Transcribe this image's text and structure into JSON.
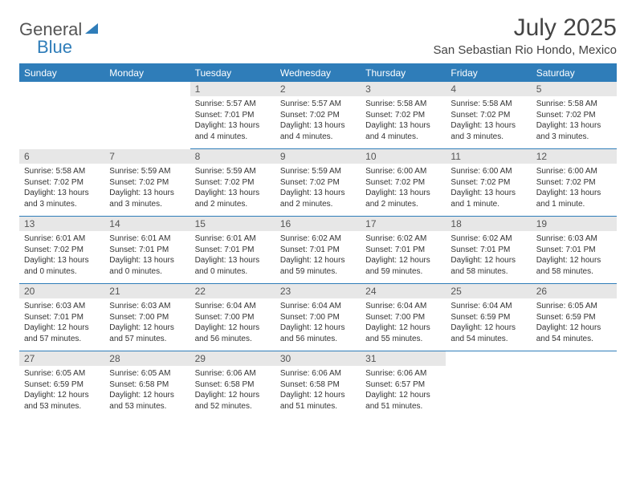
{
  "logo": {
    "word1": "General",
    "word2": "Blue"
  },
  "title": "July 2025",
  "location": "San Sebastian Rio Hondo, Mexico",
  "colors": {
    "header_bg": "#2f7db9",
    "header_fg": "#ffffff",
    "daynum_bg": "#e7e7e7",
    "text": "#333333",
    "rule": "#2f7db9"
  },
  "fonts": {
    "title_pt": 30,
    "location_pt": 15,
    "dow_pt": 12,
    "daynum_pt": 12,
    "body_pt": 10
  },
  "days_of_week": [
    "Sunday",
    "Monday",
    "Tuesday",
    "Wednesday",
    "Thursday",
    "Friday",
    "Saturday"
  ],
  "weeks": [
    [
      null,
      null,
      {
        "n": "1",
        "sunrise": "5:57 AM",
        "sunset": "7:01 PM",
        "dl1": "13 hours",
        "dl2": "and 4 minutes."
      },
      {
        "n": "2",
        "sunrise": "5:57 AM",
        "sunset": "7:02 PM",
        "dl1": "13 hours",
        "dl2": "and 4 minutes."
      },
      {
        "n": "3",
        "sunrise": "5:58 AM",
        "sunset": "7:02 PM",
        "dl1": "13 hours",
        "dl2": "and 4 minutes."
      },
      {
        "n": "4",
        "sunrise": "5:58 AM",
        "sunset": "7:02 PM",
        "dl1": "13 hours",
        "dl2": "and 3 minutes."
      },
      {
        "n": "5",
        "sunrise": "5:58 AM",
        "sunset": "7:02 PM",
        "dl1": "13 hours",
        "dl2": "and 3 minutes."
      }
    ],
    [
      {
        "n": "6",
        "sunrise": "5:58 AM",
        "sunset": "7:02 PM",
        "dl1": "13 hours",
        "dl2": "and 3 minutes."
      },
      {
        "n": "7",
        "sunrise": "5:59 AM",
        "sunset": "7:02 PM",
        "dl1": "13 hours",
        "dl2": "and 3 minutes."
      },
      {
        "n": "8",
        "sunrise": "5:59 AM",
        "sunset": "7:02 PM",
        "dl1": "13 hours",
        "dl2": "and 2 minutes."
      },
      {
        "n": "9",
        "sunrise": "5:59 AM",
        "sunset": "7:02 PM",
        "dl1": "13 hours",
        "dl2": "and 2 minutes."
      },
      {
        "n": "10",
        "sunrise": "6:00 AM",
        "sunset": "7:02 PM",
        "dl1": "13 hours",
        "dl2": "and 2 minutes."
      },
      {
        "n": "11",
        "sunrise": "6:00 AM",
        "sunset": "7:02 PM",
        "dl1": "13 hours",
        "dl2": "and 1 minute."
      },
      {
        "n": "12",
        "sunrise": "6:00 AM",
        "sunset": "7:02 PM",
        "dl1": "13 hours",
        "dl2": "and 1 minute."
      }
    ],
    [
      {
        "n": "13",
        "sunrise": "6:01 AM",
        "sunset": "7:02 PM",
        "dl1": "13 hours",
        "dl2": "and 0 minutes."
      },
      {
        "n": "14",
        "sunrise": "6:01 AM",
        "sunset": "7:01 PM",
        "dl1": "13 hours",
        "dl2": "and 0 minutes."
      },
      {
        "n": "15",
        "sunrise": "6:01 AM",
        "sunset": "7:01 PM",
        "dl1": "13 hours",
        "dl2": "and 0 minutes."
      },
      {
        "n": "16",
        "sunrise": "6:02 AM",
        "sunset": "7:01 PM",
        "dl1": "12 hours",
        "dl2": "and 59 minutes."
      },
      {
        "n": "17",
        "sunrise": "6:02 AM",
        "sunset": "7:01 PM",
        "dl1": "12 hours",
        "dl2": "and 59 minutes."
      },
      {
        "n": "18",
        "sunrise": "6:02 AM",
        "sunset": "7:01 PM",
        "dl1": "12 hours",
        "dl2": "and 58 minutes."
      },
      {
        "n": "19",
        "sunrise": "6:03 AM",
        "sunset": "7:01 PM",
        "dl1": "12 hours",
        "dl2": "and 58 minutes."
      }
    ],
    [
      {
        "n": "20",
        "sunrise": "6:03 AM",
        "sunset": "7:01 PM",
        "dl1": "12 hours",
        "dl2": "and 57 minutes."
      },
      {
        "n": "21",
        "sunrise": "6:03 AM",
        "sunset": "7:00 PM",
        "dl1": "12 hours",
        "dl2": "and 57 minutes."
      },
      {
        "n": "22",
        "sunrise": "6:04 AM",
        "sunset": "7:00 PM",
        "dl1": "12 hours",
        "dl2": "and 56 minutes."
      },
      {
        "n": "23",
        "sunrise": "6:04 AM",
        "sunset": "7:00 PM",
        "dl1": "12 hours",
        "dl2": "and 56 minutes."
      },
      {
        "n": "24",
        "sunrise": "6:04 AM",
        "sunset": "7:00 PM",
        "dl1": "12 hours",
        "dl2": "and 55 minutes."
      },
      {
        "n": "25",
        "sunrise": "6:04 AM",
        "sunset": "6:59 PM",
        "dl1": "12 hours",
        "dl2": "and 54 minutes."
      },
      {
        "n": "26",
        "sunrise": "6:05 AM",
        "sunset": "6:59 PM",
        "dl1": "12 hours",
        "dl2": "and 54 minutes."
      }
    ],
    [
      {
        "n": "27",
        "sunrise": "6:05 AM",
        "sunset": "6:59 PM",
        "dl1": "12 hours",
        "dl2": "and 53 minutes."
      },
      {
        "n": "28",
        "sunrise": "6:05 AM",
        "sunset": "6:58 PM",
        "dl1": "12 hours",
        "dl2": "and 53 minutes."
      },
      {
        "n": "29",
        "sunrise": "6:06 AM",
        "sunset": "6:58 PM",
        "dl1": "12 hours",
        "dl2": "and 52 minutes."
      },
      {
        "n": "30",
        "sunrise": "6:06 AM",
        "sunset": "6:58 PM",
        "dl1": "12 hours",
        "dl2": "and 51 minutes."
      },
      {
        "n": "31",
        "sunrise": "6:06 AM",
        "sunset": "6:57 PM",
        "dl1": "12 hours",
        "dl2": "and 51 minutes."
      },
      null,
      null
    ]
  ],
  "labels": {
    "sunrise": "Sunrise:",
    "sunset": "Sunset:",
    "daylight": "Daylight:"
  }
}
